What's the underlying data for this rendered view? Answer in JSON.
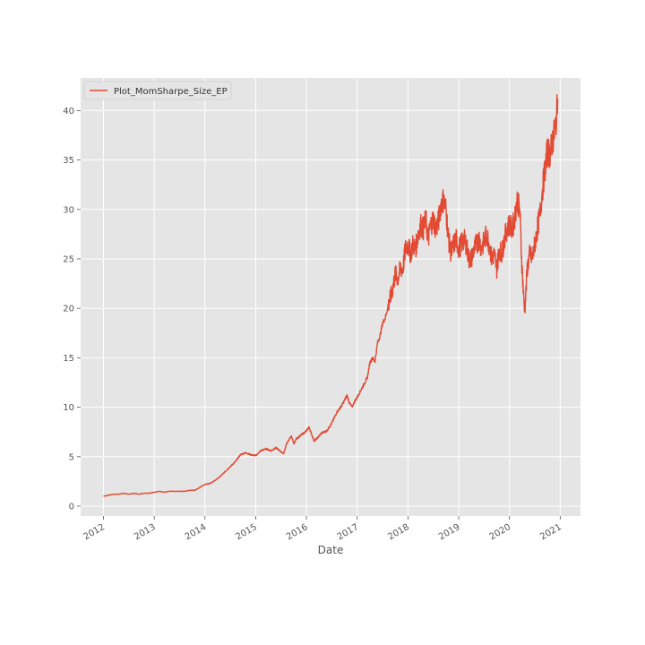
{
  "chart_data": {
    "type": "line",
    "title": "",
    "xlabel": "Date",
    "ylabel": "",
    "grid": true,
    "legend_location": "upper left",
    "xlim": [
      2011.55,
      2021.4
    ],
    "ylim": [
      -1,
      43.3
    ],
    "x_ticks": [
      2012,
      2013,
      2014,
      2015,
      2016,
      2017,
      2018,
      2019,
      2020,
      2021
    ],
    "x_tick_labels": [
      "2012",
      "2013",
      "2014",
      "2015",
      "2016",
      "2017",
      "2018",
      "2019",
      "2020",
      "2021"
    ],
    "y_ticks": [
      0,
      5,
      10,
      15,
      20,
      25,
      30,
      35,
      40
    ],
    "y_tick_labels": [
      "0",
      "5",
      "10",
      "15",
      "20",
      "25",
      "30",
      "35",
      "40"
    ],
    "series": [
      {
        "name": "Plot_MomSharpe_Size_EP",
        "color": "#e24a33",
        "x": [
          2012.0,
          2012.1,
          2012.2,
          2012.3,
          2012.4,
          2012.5,
          2012.6,
          2012.7,
          2012.8,
          2012.9,
          2013.0,
          2013.1,
          2013.2,
          2013.3,
          2013.4,
          2013.5,
          2013.6,
          2013.7,
          2013.8,
          2013.9,
          2014.0,
          2014.1,
          2014.2,
          2014.3,
          2014.4,
          2014.5,
          2014.6,
          2014.7,
          2014.8,
          2014.9,
          2015.0,
          2015.1,
          2015.2,
          2015.3,
          2015.4,
          2015.5,
          2015.55,
          2015.6,
          2015.7,
          2015.75,
          2015.8,
          2015.9,
          2016.0,
          2016.05,
          2016.1,
          2016.15,
          2016.2,
          2016.3,
          2016.4,
          2016.5,
          2016.6,
          2016.7,
          2016.8,
          2016.85,
          2016.9,
          2016.95,
          2017.0,
          2017.1,
          2017.2,
          2017.25,
          2017.3,
          2017.35,
          2017.4,
          2017.45,
          2017.5,
          2017.55,
          2017.6,
          2017.65,
          2017.7,
          2017.75,
          2017.8,
          2017.85,
          2017.9,
          2017.95,
          2018.0,
          2018.05,
          2018.1,
          2018.15,
          2018.2,
          2018.25,
          2018.3,
          2018.35,
          2018.4,
          2018.45,
          2018.5,
          2018.55,
          2018.6,
          2018.65,
          2018.7,
          2018.75,
          2018.8,
          2018.85,
          2018.9,
          2018.95,
          2019.0,
          2019.05,
          2019.1,
          2019.15,
          2019.2,
          2019.25,
          2019.3,
          2019.35,
          2019.4,
          2019.45,
          2019.5,
          2019.55,
          2019.6,
          2019.65,
          2019.7,
          2019.75,
          2019.8,
          2019.85,
          2019.9,
          2019.95,
          2020.0,
          2020.05,
          2020.1,
          2020.15,
          2020.2,
          2020.22,
          2020.24,
          2020.27,
          2020.3,
          2020.35,
          2020.4,
          2020.45,
          2020.5,
          2020.55,
          2020.6,
          2020.65,
          2020.7,
          2020.75,
          2020.8,
          2020.85,
          2020.9,
          2020.93,
          2020.95
        ],
        "values": [
          1.0,
          1.1,
          1.2,
          1.2,
          1.3,
          1.2,
          1.3,
          1.2,
          1.3,
          1.3,
          1.4,
          1.5,
          1.4,
          1.5,
          1.5,
          1.5,
          1.5,
          1.6,
          1.6,
          1.9,
          2.2,
          2.3,
          2.6,
          3.0,
          3.5,
          4.0,
          4.5,
          5.2,
          5.4,
          5.2,
          5.1,
          5.6,
          5.8,
          5.6,
          5.9,
          5.5,
          5.3,
          6.2,
          7.1,
          6.3,
          6.8,
          7.2,
          7.6,
          8.0,
          7.3,
          6.6,
          6.8,
          7.4,
          7.6,
          8.4,
          9.5,
          10.2,
          11.2,
          10.4,
          10.0,
          10.6,
          11.0,
          12.0,
          13.0,
          14.5,
          15.0,
          14.6,
          16.5,
          17.2,
          18.5,
          19.0,
          20.0,
          21.0,
          22.0,
          23.5,
          23.0,
          24.0,
          24.0,
          26.0,
          26.5,
          25.5,
          26.5,
          26.0,
          27.5,
          28.5,
          28.0,
          29.0,
          27.0,
          28.5,
          29.0,
          28.0,
          28.8,
          30.5,
          31.0,
          30.0,
          27.0,
          25.5,
          26.5,
          27.0,
          26.0,
          26.5,
          27.0,
          26.5,
          25.0,
          25.0,
          26.0,
          26.5,
          27.0,
          26.0,
          26.8,
          27.5,
          26.5,
          25.0,
          25.5,
          24.0,
          26.0,
          25.5,
          27.0,
          28.0,
          28.5,
          28.0,
          29.0,
          31.0,
          30.0,
          28.0,
          25.0,
          22.0,
          19.5,
          24.0,
          25.5,
          25.0,
          26.5,
          28.0,
          29.5,
          32.0,
          34.0,
          36.0,
          35.5,
          37.0,
          38.0,
          39.5,
          41.2
        ]
      }
    ]
  }
}
